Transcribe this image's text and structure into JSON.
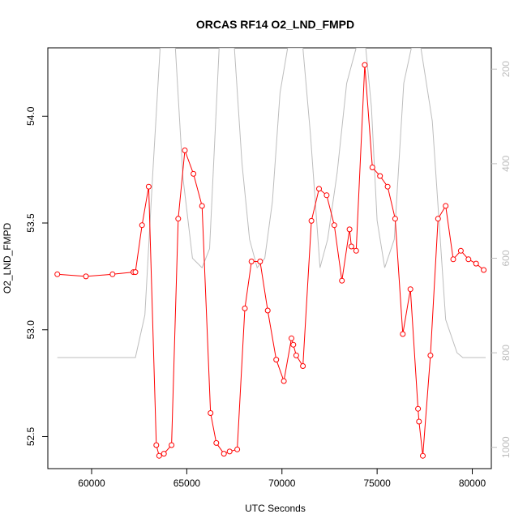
{
  "chart_data": {
    "type": "line",
    "title": "ORCAS RF14 O2_LND_FMPD",
    "xlabel": "UTC Seconds",
    "ylabel": "O2_LND_FMPD",
    "xlim": [
      57700,
      81000
    ],
    "ylim": [
      52.35,
      54.32
    ],
    "x_ticks": [
      60000,
      65000,
      70000,
      75000,
      80000
    ],
    "y_ticks": [
      "52.5",
      "53.0",
      "53.5",
      "54.0"
    ],
    "y2_lim": [
      1045,
      155
    ],
    "y2_ticks": [
      200,
      400,
      600,
      800,
      1000
    ],
    "grid": false,
    "legend": "none",
    "series": [
      {
        "color": "#ff0000",
        "marker": "open-circle",
        "x": [
          58200,
          59700,
          61100,
          62200,
          62300,
          62650,
          63000,
          63400,
          63550,
          63800,
          64200,
          64550,
          64900,
          65350,
          65800,
          66250,
          66550,
          66950,
          67250,
          67650,
          68050,
          68400,
          68850,
          69250,
          69700,
          70100,
          70500,
          70600,
          70750,
          71100,
          71550,
          71950,
          72350,
          72750,
          73150,
          73550,
          73650,
          73900,
          74350,
          74750,
          75150,
          75550,
          75950,
          76350,
          76750,
          77150,
          77200,
          77400,
          77800,
          78200,
          78600,
          79000,
          79400,
          79800,
          80200,
          80600
        ],
        "values": [
          53.26,
          53.25,
          53.26,
          53.27,
          53.27,
          53.49,
          53.67,
          52.46,
          52.41,
          52.42,
          52.46,
          53.52,
          53.84,
          53.73,
          53.58,
          52.61,
          52.47,
          52.42,
          52.43,
          52.44,
          53.1,
          53.32,
          53.32,
          53.09,
          52.86,
          52.76,
          52.96,
          52.93,
          52.88,
          52.83,
          53.51,
          53.66,
          53.63,
          53.49,
          53.23,
          53.47,
          53.39,
          53.37,
          54.24,
          53.76,
          53.72,
          53.67,
          53.52,
          52.98,
          53.19,
          52.63,
          52.57,
          52.41,
          52.88,
          53.52,
          53.58,
          53.33,
          53.37,
          53.33,
          53.31,
          53.28
        ]
      },
      {
        "color": "#bdbdbd",
        "axis": "right",
        "x": [
          58200,
          59500,
          61000,
          62300,
          62800,
          63200,
          63600,
          64000,
          64400,
          64800,
          65300,
          65800,
          66200,
          66700,
          67200,
          67500,
          67900,
          68300,
          68700,
          69100,
          69500,
          69900,
          70300,
          70700,
          71100,
          71500,
          72000,
          72400,
          72900,
          73400,
          73900,
          74400,
          74700,
          75000,
          75400,
          75900,
          76400,
          76800,
          77300,
          77900,
          78600,
          79200,
          79500,
          80000,
          80700
        ],
        "values": [
          810,
          810,
          810,
          810,
          720,
          430,
          155,
          155,
          155,
          430,
          600,
          620,
          580,
          155,
          155,
          155,
          400,
          560,
          620,
          600,
          480,
          250,
          155,
          155,
          155,
          340,
          620,
          560,
          420,
          230,
          155,
          155,
          280,
          520,
          620,
          560,
          230,
          155,
          155,
          310,
          730,
          800,
          810,
          810,
          810
        ]
      }
    ]
  }
}
